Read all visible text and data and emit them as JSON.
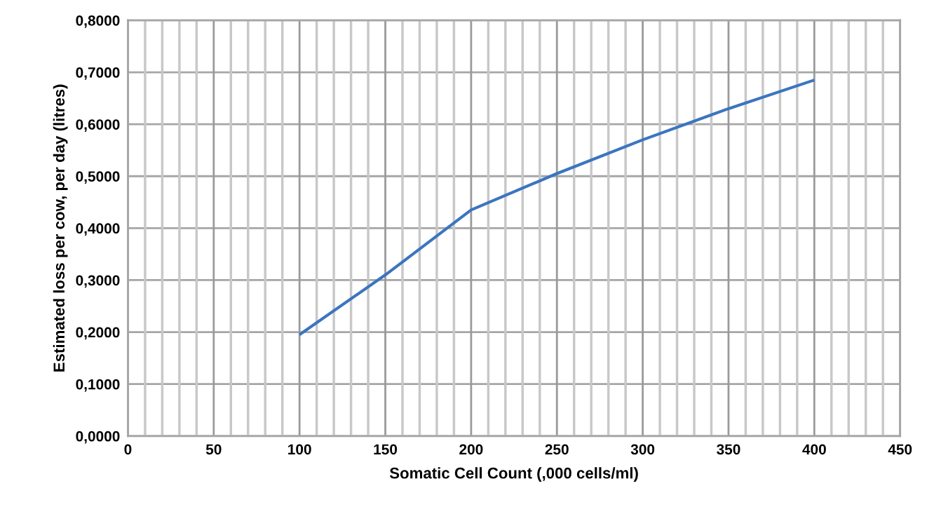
{
  "chart_data": {
    "type": "line",
    "xlabel": "Somatic Cell Count (,000 cells/ml)",
    "ylabel": "Estimated loss per cow, per day (litres)",
    "x": [
      100,
      150,
      200,
      250,
      300,
      350,
      400
    ],
    "series": [
      {
        "color": "#3b75c0",
        "values": [
          0.195,
          0.31,
          0.435,
          0.505,
          0.57,
          0.63,
          0.685
        ]
      }
    ],
    "xlim": [
      0,
      450
    ],
    "xticks": [
      0,
      {
        "value": 10,
        "label": null
      },
      {
        "value": 20,
        "label": null
      },
      {
        "value": 30,
        "label": null
      },
      {
        "value": 40,
        "label": null
      },
      50,
      {
        "value": 60,
        "label": null
      },
      {
        "value": 70,
        "label": null
      },
      {
        "value": 80,
        "label": null
      },
      {
        "value": 90,
        "label": null
      },
      100,
      {
        "value": 110,
        "label": null
      },
      {
        "value": 120,
        "label": null
      },
      {
        "value": 130,
        "label": null
      },
      {
        "value": 140,
        "label": null
      },
      150,
      {
        "value": 160,
        "label": null
      },
      {
        "value": 170,
        "label": null
      },
      {
        "value": 180,
        "label": null
      },
      {
        "value": 190,
        "label": null
      },
      200,
      {
        "value": 210,
        "label": null
      },
      {
        "value": 220,
        "label": null
      },
      {
        "value": 230,
        "label": null
      },
      {
        "value": 240,
        "label": null
      },
      250,
      {
        "value": 260,
        "label": null
      },
      {
        "value": 270,
        "label": null
      },
      {
        "value": 280,
        "label": null
      },
      {
        "value": 290,
        "label": null
      },
      300,
      {
        "value": 310,
        "label": null
      },
      {
        "value": 320,
        "label": null
      },
      {
        "value": 330,
        "label": null
      },
      {
        "value": 340,
        "label": null
      },
      350,
      {
        "value": 360,
        "label": null
      },
      {
        "value": 370,
        "label": null
      },
      {
        "value": 380,
        "label": null
      },
      {
        "value": 390,
        "label": null
      },
      400,
      {
        "value": 410,
        "label": null
      },
      {
        "value": 420,
        "label": null
      },
      {
        "value": 430,
        "label": null
      },
      {
        "value": 440,
        "label": null
      },
      450
    ],
    "ylim": [
      0,
      0.8
    ],
    "yticks": [
      {
        "value": 0,
        "label": "0,0000"
      },
      {
        "value": 0.1,
        "label": "0,1000"
      },
      {
        "value": 0.2,
        "label": "0,2000"
      },
      {
        "value": 0.3,
        "label": "0,3000"
      },
      {
        "value": 0.4,
        "label": "0,4000"
      },
      {
        "value": 0.5,
        "label": "0,5000"
      },
      {
        "value": 0.6,
        "label": "0,6000"
      },
      {
        "value": 0.7,
        "label": "0,7000"
      },
      {
        "value": 0.8,
        "label": "0,8000"
      }
    ],
    "grid": true,
    "line_style": "solid"
  }
}
